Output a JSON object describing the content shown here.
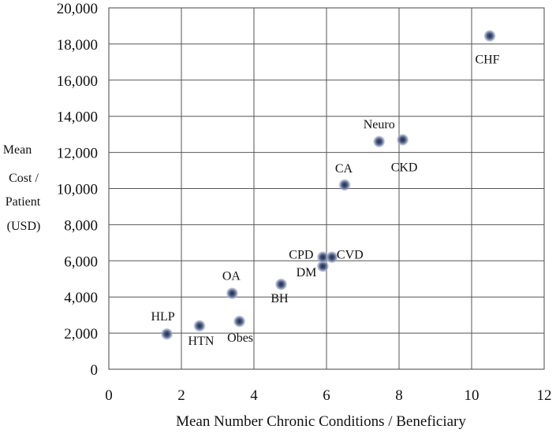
{
  "chart_data": {
    "type": "scatter",
    "title": "",
    "xlabel": "Mean Number Chronic Conditions / Beneficiary",
    "ylabel_lines": [
      "Mean",
      "Cost /",
      "Patient",
      "(USD)"
    ],
    "xlim": [
      0,
      12
    ],
    "ylim": [
      0,
      20000
    ],
    "xticks": [
      0,
      2,
      4,
      6,
      8,
      10,
      12
    ],
    "xtick_labels": [
      "0",
      "2",
      "4",
      "6",
      "8",
      "10",
      "12"
    ],
    "yticks": [
      0,
      2000,
      4000,
      6000,
      8000,
      10000,
      12000,
      14000,
      16000,
      18000,
      20000
    ],
    "ytick_labels": [
      "0",
      "2,000",
      "4,000",
      "6,000",
      "8,000",
      "10,000",
      "12,000",
      "14,000",
      "16,000",
      "18,000",
      "20,000"
    ],
    "grid": true,
    "points": [
      {
        "label": "HLP",
        "x": 1.6,
        "y": 1950
      },
      {
        "label": "HTN",
        "x": 2.5,
        "y": 2400
      },
      {
        "label": "Obes",
        "x": 3.6,
        "y": 2650
      },
      {
        "label": "OA",
        "x": 3.4,
        "y": 4200
      },
      {
        "label": "BH",
        "x": 4.75,
        "y": 4700
      },
      {
        "label": "DM",
        "x": 5.9,
        "y": 5700
      },
      {
        "label": "CPD",
        "x": 5.9,
        "y": 6200
      },
      {
        "label": "CVD",
        "x": 6.15,
        "y": 6200
      },
      {
        "label": "CA",
        "x": 6.5,
        "y": 10200
      },
      {
        "label": "Neuro",
        "x": 7.45,
        "y": 12600
      },
      {
        "label": "CKD",
        "x": 8.1,
        "y": 12700
      },
      {
        "label": "CHF",
        "x": 10.5,
        "y": 18450
      }
    ],
    "marker_color": "#5a6a8e"
  }
}
